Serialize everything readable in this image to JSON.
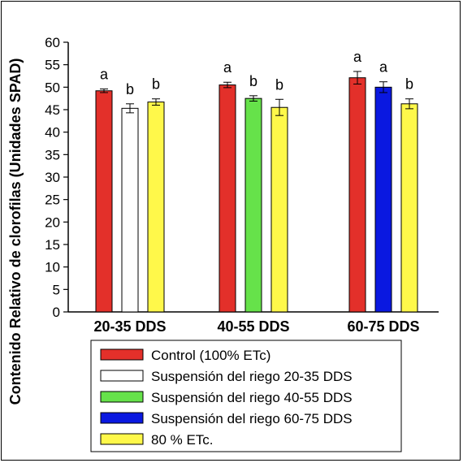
{
  "chart_data": {
    "type": "bar",
    "title": "",
    "xlabel": "",
    "ylabel": "Contenido Relativo de clorofilas (Unidades SPAD)",
    "ylim": [
      0,
      60
    ],
    "yticks": [
      0,
      5,
      10,
      15,
      20,
      25,
      30,
      35,
      40,
      45,
      50,
      55,
      60
    ],
    "grid": false,
    "legend_position": "bottom",
    "categories": [
      "20-35 DDS",
      "40-55 DDS",
      "60-75 DDS"
    ],
    "series": [
      {
        "name": "Control (100% ETc)",
        "color": "#e3302a",
        "values": [
          49.2,
          50.5,
          52.1
        ],
        "errors": [
          0.4,
          0.6,
          1.4
        ]
      },
      {
        "name": "Suspensión del riego 20-35 DDS",
        "color": "#ffffff",
        "values": [
          45.3,
          null,
          null
        ],
        "errors": [
          1.0,
          null,
          null
        ]
      },
      {
        "name": "Suspensión del riego 40-55 DDS",
        "color": "#66e24a",
        "values": [
          null,
          47.5,
          null
        ],
        "errors": [
          null,
          0.6,
          null
        ]
      },
      {
        "name": "Suspensión del riego 60-75 DDS",
        "color": "#0a18e0",
        "values": [
          null,
          null,
          50.0
        ],
        "errors": [
          null,
          null,
          1.2
        ]
      },
      {
        "name": "80 % ETc.",
        "color": "#fff84a",
        "values": [
          46.7,
          45.5,
          46.3
        ],
        "errors": [
          0.7,
          1.8,
          1.1
        ]
      }
    ],
    "bar_groups": [
      {
        "category": "20-35 DDS",
        "bars": [
          {
            "series": 0,
            "letter": "a"
          },
          {
            "series": 1,
            "letter": "b"
          },
          {
            "series": 4,
            "letter": "b"
          }
        ]
      },
      {
        "category": "40-55 DDS",
        "bars": [
          {
            "series": 0,
            "letter": "a"
          },
          {
            "series": 2,
            "letter": "b"
          },
          {
            "series": 4,
            "letter": "b"
          }
        ]
      },
      {
        "category": "60-75 DDS",
        "bars": [
          {
            "series": 0,
            "letter": "a"
          },
          {
            "series": 3,
            "letter": "a"
          },
          {
            "series": 4,
            "letter": "b"
          }
        ]
      }
    ]
  }
}
